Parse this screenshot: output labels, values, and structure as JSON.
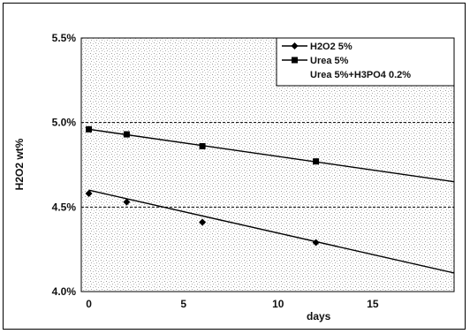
{
  "chart_data": {
    "type": "line",
    "xlabel": "days",
    "ylabel": "H2O2 wt%",
    "xlim": [
      -0.4,
      19.3
    ],
    "ylim": [
      4.0,
      5.5
    ],
    "xticks": [
      0,
      5,
      10,
      15
    ],
    "yticks": [
      4.0,
      4.5,
      5.0,
      5.5
    ],
    "ytick_labels": [
      "4.0%",
      "4.5%",
      "5.0%",
      "5.5%"
    ],
    "reference_lines": [
      4.5,
      5.0
    ],
    "legend_position": "top-right",
    "series": [
      {
        "name": "H2O2 5%",
        "marker": "diamond",
        "points": [
          [
            0,
            4.58
          ],
          [
            2,
            4.53
          ],
          [
            6,
            4.41
          ],
          [
            12,
            4.29
          ]
        ],
        "fit": [
          [
            0,
            4.6
          ],
          [
            19.3,
            4.11
          ]
        ]
      },
      {
        "name": "Urea 5%",
        "marker": "square",
        "points": [
          [
            0,
            4.96
          ],
          [
            2,
            4.93
          ],
          [
            6,
            4.86
          ],
          [
            12,
            4.77
          ]
        ],
        "fit": [
          [
            0,
            4.96
          ],
          [
            19.3,
            4.65
          ]
        ]
      },
      {
        "name": "Urea 5%+H3PO4 0.2%",
        "marker": "none",
        "points": [],
        "fit": []
      }
    ],
    "colors": {
      "line": "#000000",
      "reference": "#000000"
    }
  }
}
